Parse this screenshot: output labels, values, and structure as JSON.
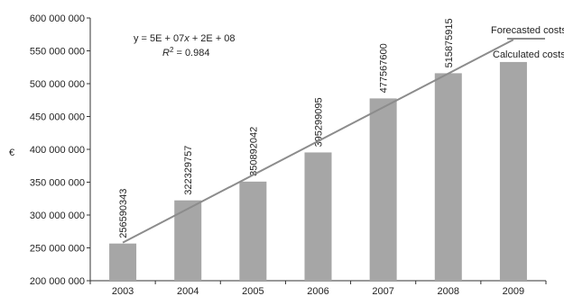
{
  "chart_data": {
    "type": "bar",
    "ylabel": "€",
    "ylim": [
      200000000,
      600000000
    ],
    "y_ticks": [
      200000000,
      250000000,
      300000000,
      350000000,
      400000000,
      450000000,
      500000000,
      550000000,
      600000000
    ],
    "y_tick_labels": [
      "200 000 000",
      "250 000 000",
      "300 000 000",
      "350 000 000",
      "400 000 000",
      "450 000 000",
      "500 000 000",
      "550 000 000",
      "600 000 000"
    ],
    "categories": [
      "2003",
      "2004",
      "2005",
      "2006",
      "2007",
      "2008",
      "2009"
    ],
    "series": [
      {
        "name": "Calculated costs",
        "values": [
          256590343,
          322329757,
          350892042,
          395299095,
          477567600,
          515875915,
          533000000
        ],
        "data_labels": [
          "256590343",
          "322329757",
          "350892042",
          "395299095",
          "477567600",
          "515875915",
          ""
        ],
        "color": "#a6a6a6"
      },
      {
        "name": "Forecasted costs",
        "type": "line",
        "x": [
          "2003",
          "2009"
        ],
        "values": [
          258000000,
          567000000
        ],
        "color": "#8c8c8c"
      }
    ],
    "equation": {
      "line1_pre": "y = 5E + 07",
      "line1_x": "x",
      "line1_post": " + 2E + 08",
      "line2_pre": "R",
      "line2_sup": "2",
      "line2_post": " = 0.984"
    },
    "legend_position": "top-right",
    "grid": false
  }
}
